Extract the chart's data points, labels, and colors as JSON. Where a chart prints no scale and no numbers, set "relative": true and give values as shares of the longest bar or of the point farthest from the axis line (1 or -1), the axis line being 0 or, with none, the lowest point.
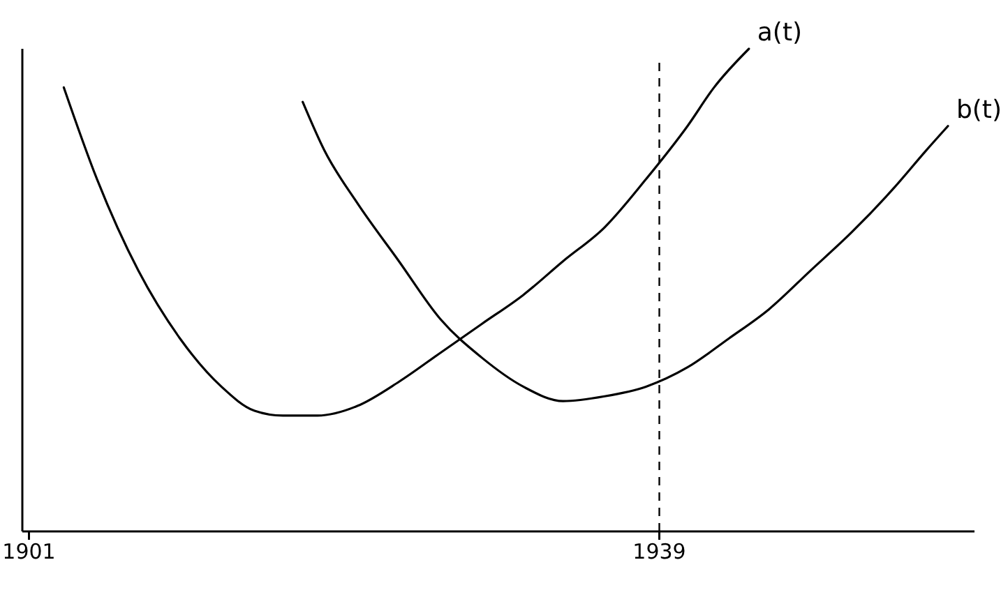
{
  "chart_data": {
    "type": "line",
    "relative": true,
    "xlim": [
      1900.6,
      1958
    ],
    "xticks": [
      1901,
      1939
    ],
    "tick_labels": "x",
    "line_style": "solid",
    "marker": "none",
    "ref_lines": [
      {
        "axis": "x",
        "value": 1939,
        "line_style": "dashed",
        "color": "#000000"
      }
    ],
    "series": [
      {
        "name": "a(t)",
        "color": "#000000",
        "x": [
          1903.1,
          1905.1,
          1907.6,
          1910.1,
          1912.6,
          1914.6,
          1916.3,
          1918.4,
          1920.8,
          1923.3,
          1925.8,
          1928.3,
          1930.8,
          1933.2,
          1935.7,
          1938.2,
          1940.7,
          1942.3,
          1944.4
        ],
        "values": [
          0.92,
          0.73,
          0.54,
          0.4,
          0.3,
          0.25,
          0.24,
          0.24,
          0.26,
          0.31,
          0.37,
          0.43,
          0.49,
          0.56,
          0.63,
          0.73,
          0.84,
          0.92,
          1
        ]
      },
      {
        "name": "b(t)",
        "color": "#000000",
        "x": [
          1917.5,
          1918.8,
          1920.8,
          1923.3,
          1925.8,
          1928.3,
          1930.8,
          1933.2,
          1935.7,
          1938.2,
          1940.7,
          1943.2,
          1945.6,
          1948.1,
          1950.6,
          1953.1,
          1955.1,
          1956.4
        ],
        "values": [
          0.89,
          0.79,
          0.68,
          0.56,
          0.44,
          0.36,
          0.3,
          0.27,
          0.28,
          0.3,
          0.34,
          0.4,
          0.46,
          0.54,
          0.62,
          0.71,
          0.79,
          0.84
        ]
      }
    ]
  }
}
